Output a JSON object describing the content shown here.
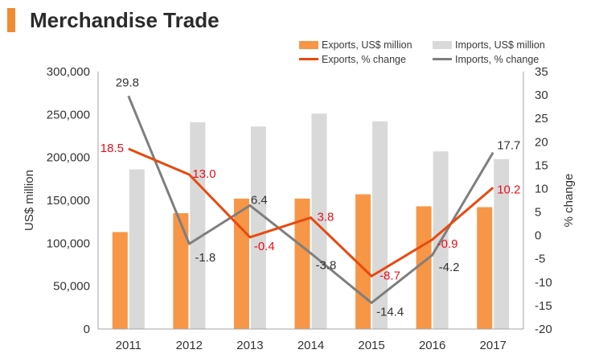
{
  "title": "Merchandise Trade",
  "colors": {
    "accent": "#f08c32",
    "exports_bar": "#f79646",
    "imports_bar": "#d9d9d9",
    "exports_line": "#e8490f",
    "imports_line": "#7f7f7f",
    "exports_label": "#e8101c",
    "imports_label": "#333333"
  },
  "legend": {
    "exports_usd": "Exports, US$ million",
    "imports_usd": "Imports, US$ million",
    "exports_pct": "Exports, % change",
    "imports_pct": "Imports, % change"
  },
  "chart_data": {
    "type": "bar",
    "combo": "bar + line (secondary axis)",
    "title": "Merchandise Trade",
    "categories": [
      "2011",
      "2012",
      "2013",
      "2014",
      "2015",
      "2016",
      "2017"
    ],
    "ylabel": "US$ million",
    "ylim": [
      0,
      300000
    ],
    "yticks": [
      "0",
      "50,000",
      "100,000",
      "150,000",
      "200,000",
      "250,000",
      "300,000"
    ],
    "y2label": "% change",
    "y2lim": [
      -20,
      35
    ],
    "y2ticks": [
      "-20",
      "-15",
      "-10",
      "-5",
      "0",
      "5",
      "10",
      "15",
      "20",
      "25",
      "30",
      "35"
    ],
    "grid": false,
    "legend_position": "top-right",
    "bar_series": [
      {
        "name": "Exports, US$ million",
        "values": [
          113000,
          135000,
          152000,
          152000,
          157000,
          143000,
          142000
        ]
      },
      {
        "name": "Imports, US$ million",
        "values": [
          186000,
          241000,
          236000,
          251000,
          242000,
          207000,
          198000
        ]
      }
    ],
    "line_series": [
      {
        "name": "Exports, % change",
        "values": [
          18.5,
          13.0,
          -0.4,
          3.8,
          -8.7,
          -0.9,
          10.2
        ],
        "labels": [
          "18.5",
          "13.0",
          "-0.4",
          "3.8",
          "-8.7",
          "-0.9",
          "10.2"
        ]
      },
      {
        "name": "Imports, % change",
        "values": [
          29.8,
          -1.8,
          6.4,
          -3.8,
          -14.4,
          -4.2,
          17.7
        ],
        "labels": [
          "29.8",
          "-1.8",
          "6.4",
          "-3.8",
          "-14.4",
          "-4.2",
          "17.7"
        ]
      }
    ]
  }
}
